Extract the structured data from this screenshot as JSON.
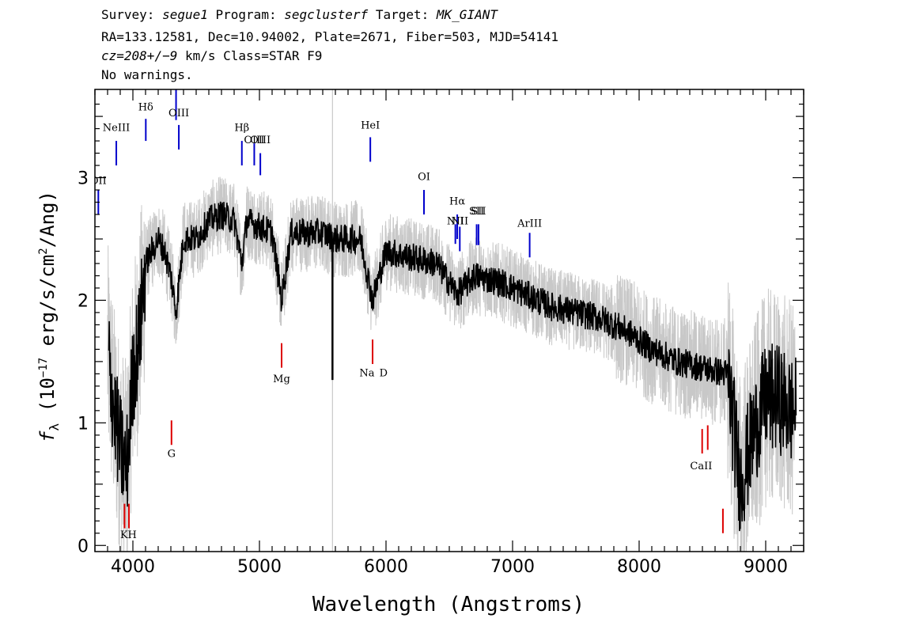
{
  "header": {
    "line1": {
      "survey_label": "Survey:",
      "survey": "segue1",
      "program_label": "Program:",
      "program": "segclusterf",
      "target_label": "Target:",
      "target": "MK_GIANT"
    },
    "line2": "RA=133.12581, Dec=10.94002, Plate=2671, Fiber=503, MJD=54141",
    "line3": {
      "cz_prefix": "cz=",
      "cz": "208+/−9",
      "cz_suffix": " km/s Class=STAR F9"
    },
    "line4": "No warnings."
  },
  "chart_data": {
    "type": "line",
    "xlabel": "Wavelength (Angstroms)",
    "ylabel_prefix": "f",
    "ylabel_sub": "λ",
    "ylabel_mid": " (10",
    "ylabel_exp": "−17",
    "ylabel_units": " erg/s/cm",
    "ylabel_exp2": "2",
    "ylabel_end": "/Ang)",
    "xlim": [
      3700,
      9300
    ],
    "ylim": [
      -0.05,
      3.72
    ],
    "x_ticks": [
      "4000",
      "5000",
      "6000",
      "7000",
      "8000",
      "9000"
    ],
    "x_tick_values": [
      4000,
      5000,
      6000,
      7000,
      8000,
      9000
    ],
    "y_ticks": [
      "0",
      "1",
      "2",
      "3"
    ],
    "y_tick_values": [
      0,
      1,
      2,
      3
    ],
    "sky_line_x": 5577,
    "colors": {
      "model": "#000000",
      "noise": "#c8c8c8",
      "emission": "#0000cc",
      "absorption": "#dd0000",
      "sky": "#c8c8c8"
    },
    "spectrum_anchors": [
      [
        3800,
        1.6
      ],
      [
        3850,
        1.1
      ],
      [
        3900,
        0.8
      ],
      [
        3950,
        0.6
      ],
      [
        4000,
        1.4
      ],
      [
        4050,
        1.7
      ],
      [
        4100,
        2.3
      ],
      [
        4150,
        2.4
      ],
      [
        4200,
        2.5
      ],
      [
        4250,
        2.4
      ],
      [
        4300,
        2.2
      ],
      [
        4340,
        1.9
      ],
      [
        4400,
        2.5
      ],
      [
        4500,
        2.5
      ],
      [
        4600,
        2.65
      ],
      [
        4700,
        2.7
      ],
      [
        4800,
        2.65
      ],
      [
        4861,
        2.3
      ],
      [
        4900,
        2.65
      ],
      [
        5000,
        2.6
      ],
      [
        5100,
        2.55
      ],
      [
        5175,
        2.0
      ],
      [
        5250,
        2.55
      ],
      [
        5400,
        2.55
      ],
      [
        5500,
        2.55
      ],
      [
        5600,
        2.5
      ],
      [
        5700,
        2.5
      ],
      [
        5800,
        2.5
      ],
      [
        5893,
        2.0
      ],
      [
        6000,
        2.4
      ],
      [
        6200,
        2.35
      ],
      [
        6400,
        2.3
      ],
      [
        6563,
        2.05
      ],
      [
        6700,
        2.2
      ],
      [
        6900,
        2.15
      ],
      [
        7100,
        2.05
      ],
      [
        7300,
        1.95
      ],
      [
        7500,
        1.9
      ],
      [
        7700,
        1.85
      ],
      [
        7900,
        1.75
      ],
      [
        8100,
        1.6
      ],
      [
        8300,
        1.5
      ],
      [
        8500,
        1.45
      ],
      [
        8700,
        1.4
      ],
      [
        8800,
        0.5
      ],
      [
        8900,
        0.9
      ],
      [
        9000,
        1.2
      ],
      [
        9100,
        1.2
      ],
      [
        9200,
        1.1
      ]
    ],
    "emission_lines": [
      {
        "name": "NeIII",
        "x": 3869,
        "label_y": 3.38,
        "y1": 3.1,
        "y2": 3.3
      },
      {
        "name": "Hδ",
        "x": 4102,
        "label_y": 3.55,
        "y1": 3.3,
        "y2": 3.48
      },
      {
        "name": "Hγ",
        "x": 4341,
        "label_y": 3.75,
        "y1": 3.47,
        "y2": 3.72
      },
      {
        "name": "OIII",
        "x": 4363,
        "label_y": 3.5,
        "y1": 3.23,
        "y2": 3.43
      },
      {
        "name": "Hβ",
        "x": 4861,
        "label_y": 3.38,
        "y1": 3.1,
        "y2": 3.3
      },
      {
        "name": "OIII",
        "x": 4959,
        "label_y": 3.28,
        "y1": 3.1,
        "y2": 3.28
      },
      {
        "name": "OIII",
        "x": 5007,
        "label_y": 3.28,
        "y1": 3.02,
        "y2": 3.2
      },
      {
        "name": "HeI",
        "x": 5876,
        "label_y": 3.4,
        "y1": 3.13,
        "y2": 3.33
      },
      {
        "name": "OI",
        "x": 6300,
        "label_y": 2.98,
        "y1": 2.7,
        "y2": 2.9
      },
      {
        "name": "NII",
        "x": 6548,
        "label_y": 2.62,
        "y1": 2.46,
        "y2": 2.62
      },
      {
        "name": "Hα",
        "x": 6563,
        "label_y": 2.78,
        "y1": 2.5,
        "y2": 2.7
      },
      {
        "name": "NII",
        "x": 6583,
        "label_y": 2.62,
        "y1": 2.4,
        "y2": 2.6
      },
      {
        "name": "SII",
        "x": 6716,
        "label_y": 2.7,
        "y1": 2.45,
        "y2": 2.62
      },
      {
        "name": "SII",
        "x": 6731,
        "label_y": 2.7,
        "y1": 2.45,
        "y2": 2.62
      },
      {
        "name": "ArIII",
        "x": 7135,
        "label_y": 2.6,
        "y1": 2.35,
        "y2": 2.55
      },
      {
        "name": "OII",
        "x": 3727,
        "label_y": 2.95,
        "y1": 2.7,
        "y2": 2.9
      }
    ],
    "absorption_lines": [
      {
        "name": "K",
        "x": 3934,
        "label_y": 0.06,
        "y1": 0.14,
        "y2": 0.34
      },
      {
        "name": "H",
        "x": 3969,
        "label_y": 0.06,
        "y1": 0.14,
        "y2": 0.34
      },
      {
        "name": "G",
        "x": 4305,
        "label_y": 0.72,
        "y1": 0.82,
        "y2": 1.02
      },
      {
        "name": "Mg",
        "x": 5175,
        "label_y": 1.33,
        "y1": 1.45,
        "y2": 1.65
      },
      {
        "name": "Na",
        "x": 5894,
        "label_y": 1.38,
        "y1": 1.48,
        "y2": 1.68
      },
      {
        "name": "CaII",
        "x": 8498,
        "label_y": 0.58,
        "y1": 0.75,
        "y2": 0.95
      },
      {
        "name": "CaII",
        "x": 8542,
        "label_y": 0.58,
        "y1": 0.78,
        "y2": 0.98
      },
      {
        "name": "CaII",
        "x": 8662,
        "label_y": 0.58,
        "y1": 0.1,
        "y2": 0.3
      }
    ],
    "absorption_labels": [
      {
        "text": "K",
        "x": 3930,
        "y": 0.06
      },
      {
        "text": "H",
        "x": 3995,
        "y": 0.06
      },
      {
        "text": "G",
        "x": 4305,
        "y": 0.72
      },
      {
        "text": "Mg",
        "x": 5175,
        "y": 1.33
      },
      {
        "text": "Na",
        "x": 5850,
        "y": 1.38
      },
      {
        "text": "D",
        "x": 5980,
        "y": 1.38
      },
      {
        "text": "CaII",
        "x": 8490,
        "y": 0.62
      }
    ]
  }
}
